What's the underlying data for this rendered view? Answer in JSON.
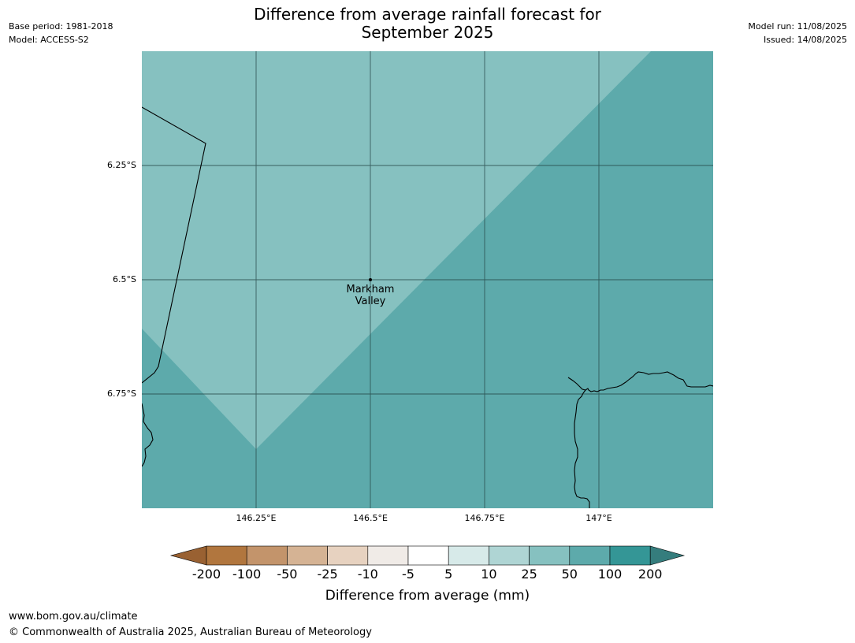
{
  "header": {
    "title_line1": "Difference from average rainfall forecast for",
    "title_line2": "September 2025",
    "base_period": "Base period: 1981-2018",
    "model": "Model: ACCESS-S2",
    "model_run": "Model run: 11/08/2025",
    "issued": "Issued: 14/08/2025"
  },
  "map": {
    "lat_labels": [
      "6.25°S",
      "6.5°S",
      "6.75°S"
    ],
    "lon_labels": [
      "146.25°E",
      "146.5°E",
      "146.75°E",
      "147°E"
    ],
    "place": {
      "name_line1": "Markham",
      "name_line2": "Valley"
    },
    "colors": {
      "band_25_50": "#86c1c0",
      "band_50_100": "#5daaab",
      "gridline": "#1f3e3e",
      "coastline": "#000000"
    }
  },
  "colorbar": {
    "ticks": [
      "-200",
      "-100",
      "-50",
      "-25",
      "-10",
      "-5",
      "5",
      "10",
      "25",
      "50",
      "100",
      "200"
    ],
    "colors": [
      "#996132",
      "#b1763e",
      "#c3946b",
      "#d5b394",
      "#e7d2c0",
      "#f0ebe7",
      "#ffffff",
      "#d7eae9",
      "#afd5d4",
      "#86c1c0",
      "#5daaab",
      "#349696",
      "#357d7d"
    ],
    "label": "Difference from average (mm)"
  },
  "footer": {
    "url": "www.bom.gov.au/climate",
    "copyright": "© Commonwealth of Australia 2025, Australian Bureau of Meteorology"
  }
}
